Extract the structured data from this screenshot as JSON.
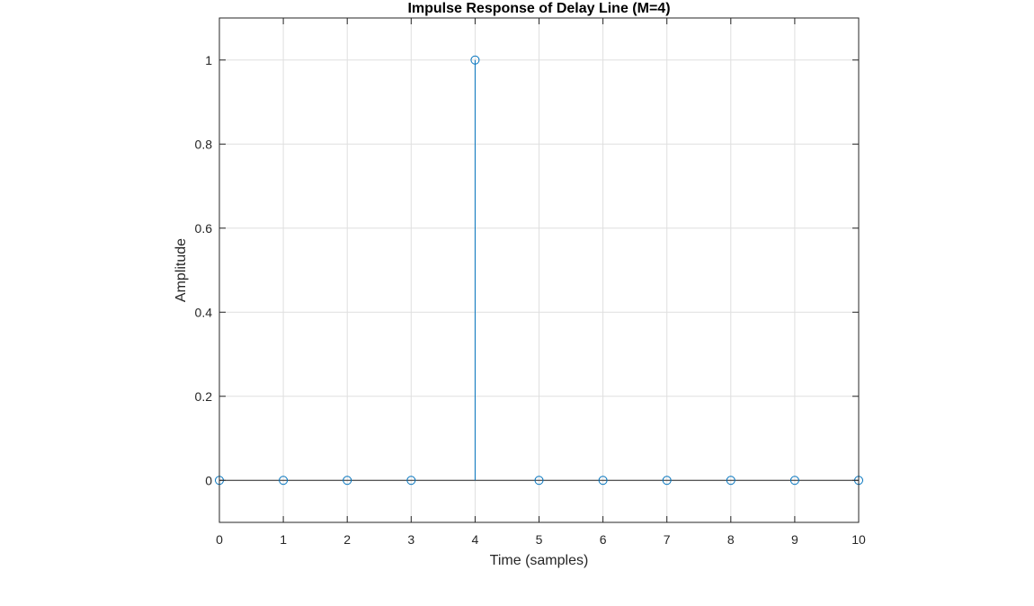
{
  "chart_data": {
    "type": "stem",
    "title": "Impulse Response of Delay Line (M=4)",
    "xlabel": "Time (samples)",
    "ylabel": "Amplitude",
    "x": [
      0,
      1,
      2,
      3,
      4,
      5,
      6,
      7,
      8,
      9,
      10
    ],
    "y": [
      0,
      0,
      0,
      0,
      1,
      0,
      0,
      0,
      0,
      0,
      0
    ],
    "xlim": [
      0,
      10
    ],
    "ylim": [
      -0.1,
      1.1
    ],
    "xticks": [
      0,
      1,
      2,
      3,
      4,
      5,
      6,
      7,
      8,
      9,
      10
    ],
    "yticks": [
      0,
      0.2,
      0.4,
      0.6,
      0.8,
      1
    ],
    "xtick_labels": [
      "0",
      "1",
      "2",
      "3",
      "4",
      "5",
      "6",
      "7",
      "8",
      "9",
      "10"
    ],
    "ytick_labels": [
      "0",
      "0.2",
      "0.4",
      "0.6",
      "0.8",
      "1"
    ],
    "grid": true,
    "colors": {
      "series": "#0072bd",
      "baseline": "#262626",
      "axes": "#262626",
      "grid": "#dfdfdf"
    }
  }
}
